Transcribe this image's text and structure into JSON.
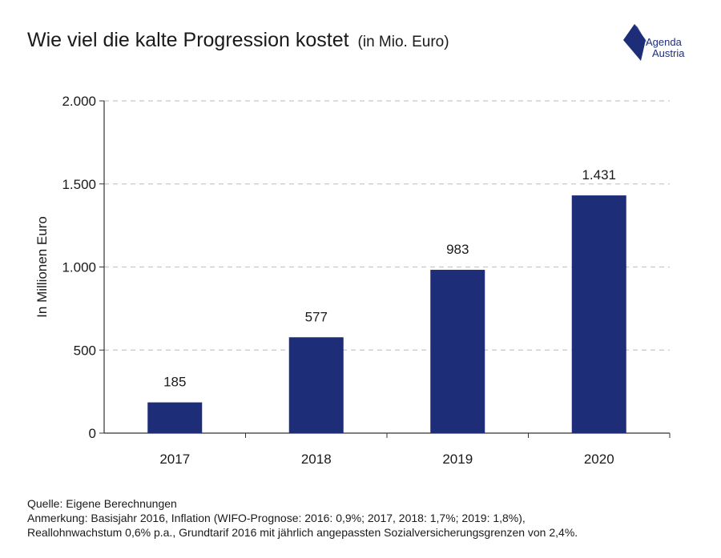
{
  "header": {
    "title": "Wie viel die kalte Progression kostet",
    "subtitle": "(in Mio. Euro)"
  },
  "logo": {
    "line1": "Agenda",
    "line2": "Austria",
    "icon": "agenda-austria-logo-icon"
  },
  "colors": {
    "bar": "#1e2d78",
    "grid": "#c8c8c8",
    "axis": "#333333",
    "brand": "#1e2d78"
  },
  "chart_data": {
    "type": "bar",
    "title": "Wie viel die kalte Progression kostet",
    "subtitle": "(in Mio. Euro)",
    "categories": [
      "2017",
      "2018",
      "2019",
      "2020"
    ],
    "values": [
      185,
      577,
      983,
      1431
    ],
    "data_labels": [
      "185",
      "577",
      "983",
      "1.431"
    ],
    "ylabel": "In Millionen Euro",
    "xlabel": "",
    "ylim": [
      0,
      2000
    ],
    "yticks": [
      0,
      500,
      1000,
      1500,
      2000
    ],
    "ytick_labels": [
      "0",
      "500",
      "1.000",
      "1.500",
      "2.000"
    ],
    "grid": "horizontal dashed",
    "legend": "none"
  },
  "notes": {
    "source": "Quelle: Eigene Berechnungen",
    "remark_line1": "Anmerkung: Basisjahr 2016, Inflation (WIFO-Prognose: 2016: 0,9%; 2017, 2018: 1,7%; 2019: 1,8%),",
    "remark_line2": "Reallohnwachstum 0,6% p.a., Grundtarif 2016 mit jährlich angepassten Sozialversicherungsgrenzen von 2,4%."
  }
}
